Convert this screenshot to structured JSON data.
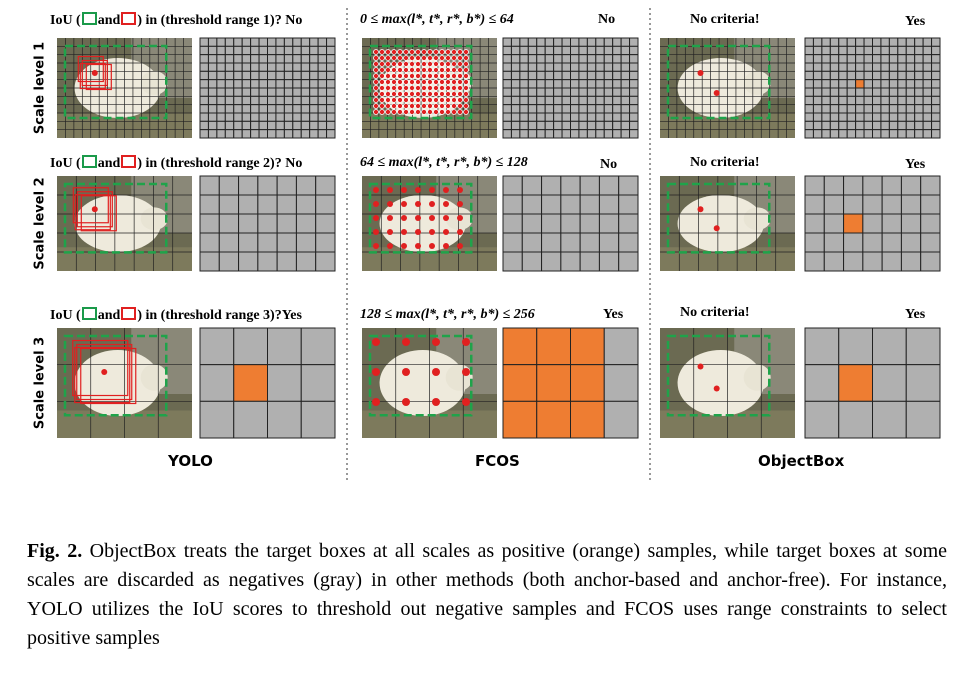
{
  "rows": [
    {
      "label": "Scale level 1",
      "yolo": {
        "prefix": "IoU (",
        "and": "and",
        "suffix": ") in (threshold range 1)? No"
      },
      "fcos": {
        "condition": "0 ≤ max(l*, t*, r*, b*) ≤ 64",
        "answer": "No"
      },
      "objectbox": {
        "condition": "No criteria!",
        "answer": "Yes"
      }
    },
    {
      "label": "Scale level 2",
      "yolo": {
        "prefix": "IoU (",
        "and": "and",
        "suffix": ") in (threshold range 2)? No"
      },
      "fcos": {
        "condition": "64 ≤ max(l*, t*, r*, b*) ≤ 128",
        "answer": "No"
      },
      "objectbox": {
        "condition": "No criteria!",
        "answer": "Yes"
      }
    },
    {
      "label": "Scale level 3",
      "yolo": {
        "prefix": "IoU (",
        "and": "and",
        "suffix": ") in (threshold range 3)?Yes"
      },
      "fcos": {
        "condition": "128 ≤ max(l*, t*, r*, b*) ≤ 256",
        "answer": "Yes"
      },
      "objectbox": {
        "condition": "No criteria!",
        "answer": "Yes"
      }
    }
  ],
  "columns": [
    "YOLO",
    "FCOS",
    "ObjectBox"
  ],
  "caption": {
    "label": "Fig. 2.",
    "text": "ObjectBox treats the target boxes at all scales as positive (orange) samples, while target boxes at some scales are discarded as negatives (gray) in other methods (both anchor-based and anchor-free). For instance, YOLO utilizes the IoU scores to threshold out negative samples and FCOS uses range constraints to select positive samples"
  }
}
